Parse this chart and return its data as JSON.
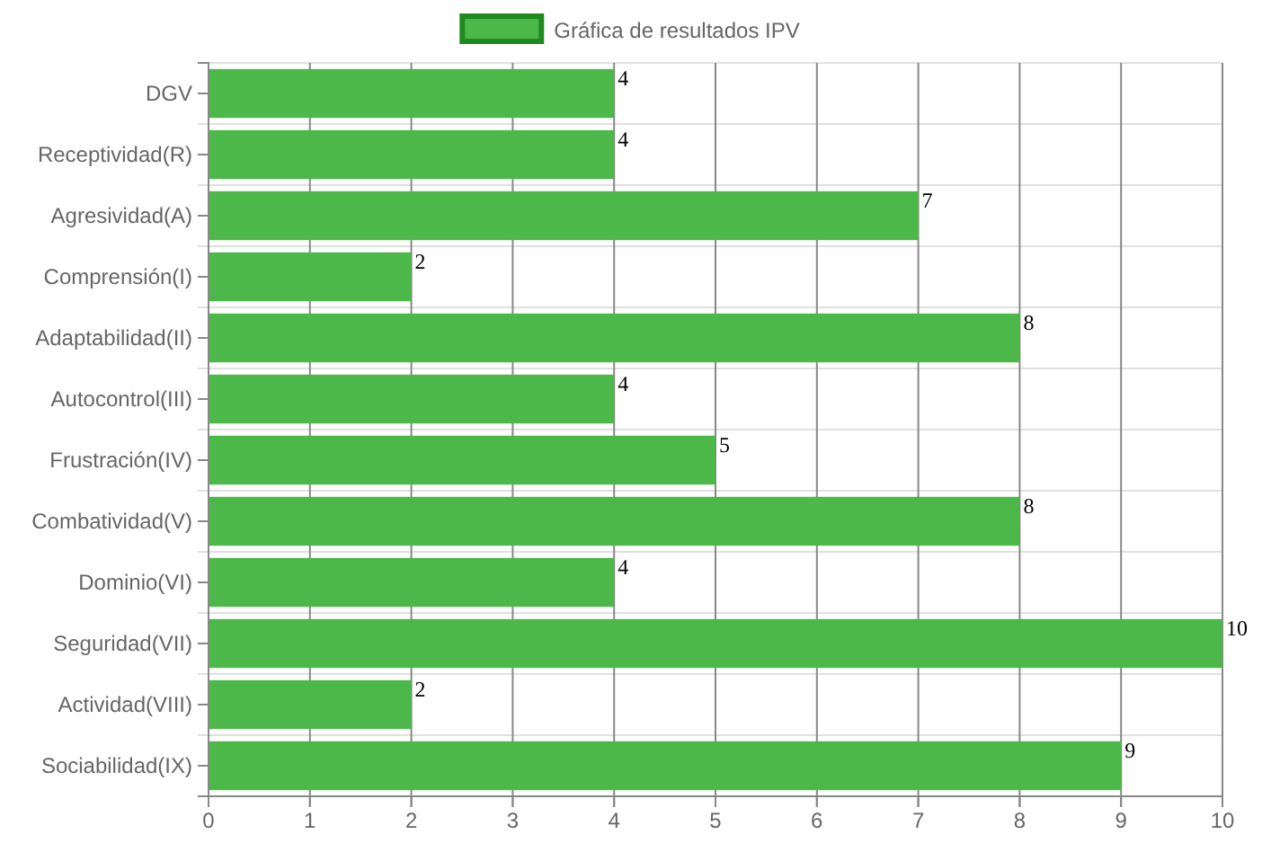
{
  "chart_data": {
    "type": "bar",
    "orientation": "horizontal",
    "categories": [
      "DGV",
      "Receptividad(R)",
      "Agresividad(A)",
      "Comprensión(I)",
      "Adaptabilidad(II)",
      "Autocontrol(III)",
      "Frustración(IV)",
      "Combatividad(V)",
      "Dominio(VI)",
      "Seguridad(VII)",
      "Actividad(VIII)",
      "Sociabilidad(IX)"
    ],
    "series": [
      {
        "name": "Gráfica de resultados IPV",
        "color": "#4db84a",
        "values": [
          4,
          4,
          7,
          2,
          8,
          4,
          5,
          8,
          4,
          10,
          2,
          9
        ]
      }
    ],
    "xlim": [
      0,
      10
    ],
    "xticks": [
      0,
      1,
      2,
      3,
      4,
      5,
      6,
      7,
      8,
      9,
      10
    ],
    "grid": true,
    "legend": "top",
    "data_labels": true
  }
}
